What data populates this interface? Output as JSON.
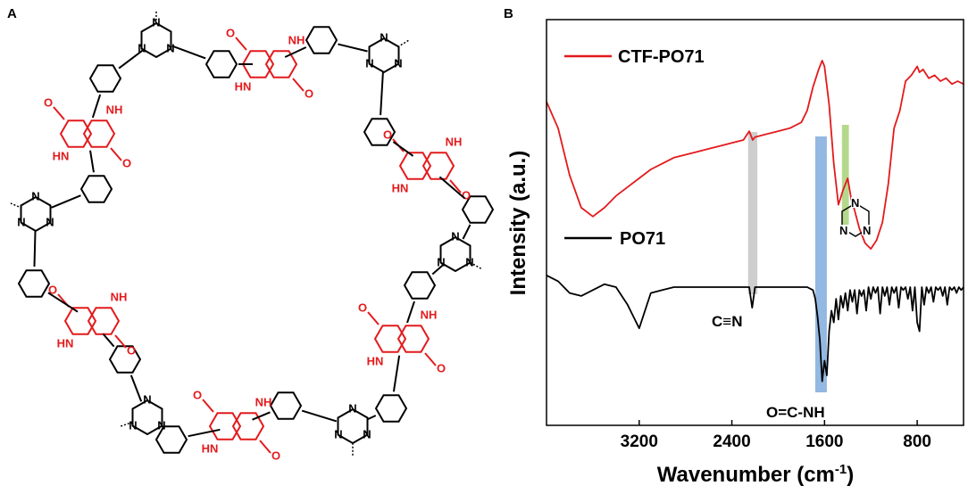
{
  "panels": {
    "a": "A",
    "b": "B"
  },
  "colors": {
    "ctf": "#e31a1c",
    "po71": "#000000",
    "gray_band": "#bdbdbd",
    "blue_band": "#6fa0d8",
    "green_band": "#9ccc65",
    "black_unit": "#000000",
    "red_unit": "#e31a1c"
  },
  "molecule": {
    "triazine_atom": "N",
    "dpp_nh": "NH",
    "dpp_hn": "HN",
    "dpp_o": "O"
  },
  "chart_data": {
    "type": "line",
    "title": "",
    "xlabel": "Wavenumber (cm⁻¹)",
    "ylabel": "Intensity (a.u.)",
    "x_reversed": true,
    "xlim": [
      4000,
      400
    ],
    "xticks": [
      3200,
      2400,
      1600,
      800
    ],
    "yticks_shown": false,
    "series": [
      {
        "name": "CTF-PO71",
        "color": "#e31a1c",
        "x": [
          4000,
          3900,
          3800,
          3700,
          3600,
          3500,
          3400,
          3300,
          3200,
          3100,
          3000,
          2900,
          2800,
          2700,
          2600,
          2500,
          2400,
          2300,
          2250,
          2220,
          2200,
          2100,
          2000,
          1900,
          1800,
          1750,
          1700,
          1650,
          1620,
          1600,
          1560,
          1520,
          1480,
          1440,
          1400,
          1370,
          1340,
          1300,
          1250,
          1200,
          1150,
          1100,
          1050,
          1000,
          950,
          900,
          850,
          800,
          780,
          750,
          700,
          650,
          600,
          550,
          500,
          450,
          400
        ],
        "values": [
          0.83,
          0.74,
          0.58,
          0.47,
          0.44,
          0.47,
          0.51,
          0.54,
          0.57,
          0.6,
          0.62,
          0.64,
          0.65,
          0.66,
          0.67,
          0.68,
          0.69,
          0.7,
          0.73,
          0.7,
          0.71,
          0.72,
          0.73,
          0.74,
          0.76,
          0.8,
          0.88,
          0.94,
          0.97,
          0.95,
          0.82,
          0.62,
          0.48,
          0.53,
          0.57,
          0.5,
          0.46,
          0.4,
          0.35,
          0.33,
          0.36,
          0.42,
          0.55,
          0.74,
          0.8,
          0.9,
          0.92,
          0.95,
          0.93,
          0.94,
          0.91,
          0.92,
          0.9,
          0.91,
          0.89,
          0.9,
          0.89
        ]
      },
      {
        "name": "PO71",
        "color": "#000000",
        "x": [
          4000,
          3900,
          3800,
          3700,
          3600,
          3500,
          3400,
          3300,
          3250,
          3200,
          3150,
          3100,
          3000,
          2900,
          2800,
          2700,
          2600,
          2500,
          2400,
          2300,
          2250,
          2225,
          2200,
          2100,
          2000,
          1900,
          1800,
          1750,
          1700,
          1680,
          1660,
          1640,
          1620,
          1600,
          1580,
          1560,
          1540,
          1520,
          1500,
          1480,
          1460,
          1440,
          1420,
          1400,
          1380,
          1360,
          1340,
          1320,
          1300,
          1280,
          1260,
          1240,
          1220,
          1200,
          1180,
          1160,
          1140,
          1120,
          1100,
          1080,
          1060,
          1040,
          1020,
          1000,
          980,
          960,
          940,
          920,
          900,
          880,
          860,
          840,
          820,
          800,
          780,
          760,
          740,
          720,
          700,
          680,
          660,
          640,
          620,
          600,
          580,
          560,
          540,
          520,
          500,
          480,
          460,
          440,
          420,
          400
        ],
        "values": [
          0.24,
          0.22,
          0.18,
          0.17,
          0.19,
          0.21,
          0.2,
          0.14,
          0.1,
          0.06,
          0.12,
          0.18,
          0.19,
          0.2,
          0.2,
          0.2,
          0.2,
          0.2,
          0.2,
          0.2,
          0.2,
          0.13,
          0.2,
          0.2,
          0.2,
          0.2,
          0.2,
          0.2,
          0.19,
          0.16,
          0.1,
          0.02,
          -0.12,
          -0.05,
          -0.1,
          0.05,
          0.12,
          0.08,
          0.16,
          0.09,
          0.17,
          0.13,
          0.18,
          0.12,
          0.19,
          0.15,
          0.19,
          0.11,
          0.19,
          0.17,
          0.19,
          0.12,
          0.2,
          0.16,
          0.2,
          0.18,
          0.2,
          0.11,
          0.2,
          0.17,
          0.2,
          0.14,
          0.2,
          0.18,
          0.2,
          0.13,
          0.2,
          0.19,
          0.2,
          0.16,
          0.2,
          0.12,
          0.2,
          0.08,
          0.05,
          0.2,
          0.14,
          0.2,
          0.18,
          0.2,
          0.15,
          0.2,
          0.19,
          0.2,
          0.17,
          0.2,
          0.14,
          0.2,
          0.19,
          0.2,
          0.18,
          0.2,
          0.19,
          0.2
        ]
      }
    ],
    "annotations": [
      {
        "label": "C≡N",
        "band": [
          2260,
          2180
        ],
        "color": "#bdbdbd"
      },
      {
        "label": "O=C-NH",
        "band": [
          1680,
          1580
        ],
        "color": "#6fa0d8"
      },
      {
        "label": "triazine",
        "band": [
          1450,
          1390
        ],
        "color": "#9ccc65"
      }
    ]
  },
  "legend": [
    {
      "label": "CTF-PO71",
      "color": "#e31a1c"
    },
    {
      "label": "PO71",
      "color": "#000000"
    }
  ],
  "annotation_labels": {
    "cn": "C≡N",
    "amide": "O=C-NH",
    "triazine_n": "N"
  },
  "axis": {
    "ylabel": "Intensity (a.u.)",
    "xlabel_main": "Wavenumber (cm",
    "xlabel_sup": "-1",
    "xlabel_close": ")"
  }
}
